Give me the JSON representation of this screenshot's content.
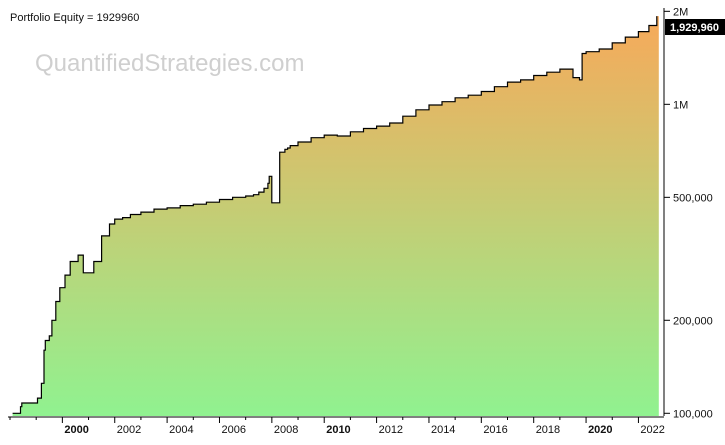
{
  "title": "Portfolio Equity = 1929960",
  "watermark": "QuantifiedStrategies.com",
  "last_value_label": "1,929,960",
  "colors": {
    "background": "#ffffff",
    "line": "#000000",
    "fill_top": "#f7a95a",
    "fill_bottom": "#90f290",
    "last_value_box": "#000000",
    "watermark": "#cfcfcf"
  },
  "chart_data": {
    "type": "area",
    "title": "Portfolio Equity = 1929960",
    "xlabel": "",
    "ylabel": "",
    "yscale": "log",
    "ylim": [
      98000,
      2050000
    ],
    "xlim": [
      1998.0,
      2022.9
    ],
    "grid": false,
    "x_tick_labels": [
      "2000",
      "2002",
      "2004",
      "2006",
      "2008",
      "2010",
      "2012",
      "2014",
      "2016",
      "2018",
      "2020",
      "2022"
    ],
    "x_tick_values": [
      2000,
      2002,
      2004,
      2006,
      2008,
      2010,
      2012,
      2014,
      2016,
      2018,
      2020,
      2022
    ],
    "x_tick_bold": [
      true,
      false,
      false,
      false,
      false,
      true,
      false,
      false,
      false,
      false,
      true,
      false
    ],
    "y_tick_labels": [
      "100,000",
      "200,000",
      "500,000",
      "1M",
      "2M"
    ],
    "y_tick_values": [
      100000,
      200000,
      500000,
      1000000,
      2000000
    ],
    "series": [
      {
        "x": [
          1998.1,
          1998.4,
          1998.45,
          1999.0,
          1999.05,
          1999.2,
          1999.3,
          1999.35,
          1999.5,
          1999.6,
          1999.75,
          1999.9,
          2000.1,
          2000.3,
          2000.6,
          2000.8,
          2001.0,
          2001.2,
          2001.5,
          2001.8,
          2002.0,
          2002.3,
          2002.6,
          2003.0,
          2003.5,
          2004.0,
          2004.5,
          2005.0,
          2005.5,
          2006.0,
          2006.5,
          2007.0,
          2007.3,
          2007.5,
          2007.7,
          2007.85,
          2007.9,
          2008.0,
          2008.3,
          2008.5,
          2008.6,
          2008.7,
          2009.0,
          2009.5,
          2010.0,
          2010.5,
          2011.0,
          2011.5,
          2012.0,
          2012.5,
          2013.0,
          2013.5,
          2014.0,
          2014.5,
          2015.0,
          2015.5,
          2016.0,
          2016.5,
          2017.0,
          2017.5,
          2018.0,
          2018.5,
          2019.0,
          2019.5,
          2019.75,
          2019.85,
          2020.0,
          2020.5,
          2021.0,
          2021.5,
          2022.0,
          2022.4,
          2022.7
        ],
        "values": [
          100000,
          105000,
          108000,
          108000,
          112000,
          125000,
          160000,
          172000,
          178000,
          200000,
          230000,
          255000,
          280000,
          310000,
          325000,
          285000,
          285000,
          310000,
          375000,
          410000,
          425000,
          430000,
          440000,
          448000,
          458000,
          462000,
          470000,
          475000,
          482000,
          492000,
          500000,
          505000,
          510000,
          520000,
          535000,
          555000,
          585000,
          480000,
          700000,
          715000,
          722000,
          735000,
          755000,
          780000,
          795000,
          790000,
          815000,
          835000,
          850000,
          870000,
          915000,
          960000,
          995000,
          1020000,
          1050000,
          1070000,
          1100000,
          1140000,
          1180000,
          1200000,
          1240000,
          1270000,
          1300000,
          1220000,
          1200000,
          1460000,
          1480000,
          1510000,
          1580000,
          1650000,
          1720000,
          1800000,
          1929960
        ]
      }
    ]
  }
}
